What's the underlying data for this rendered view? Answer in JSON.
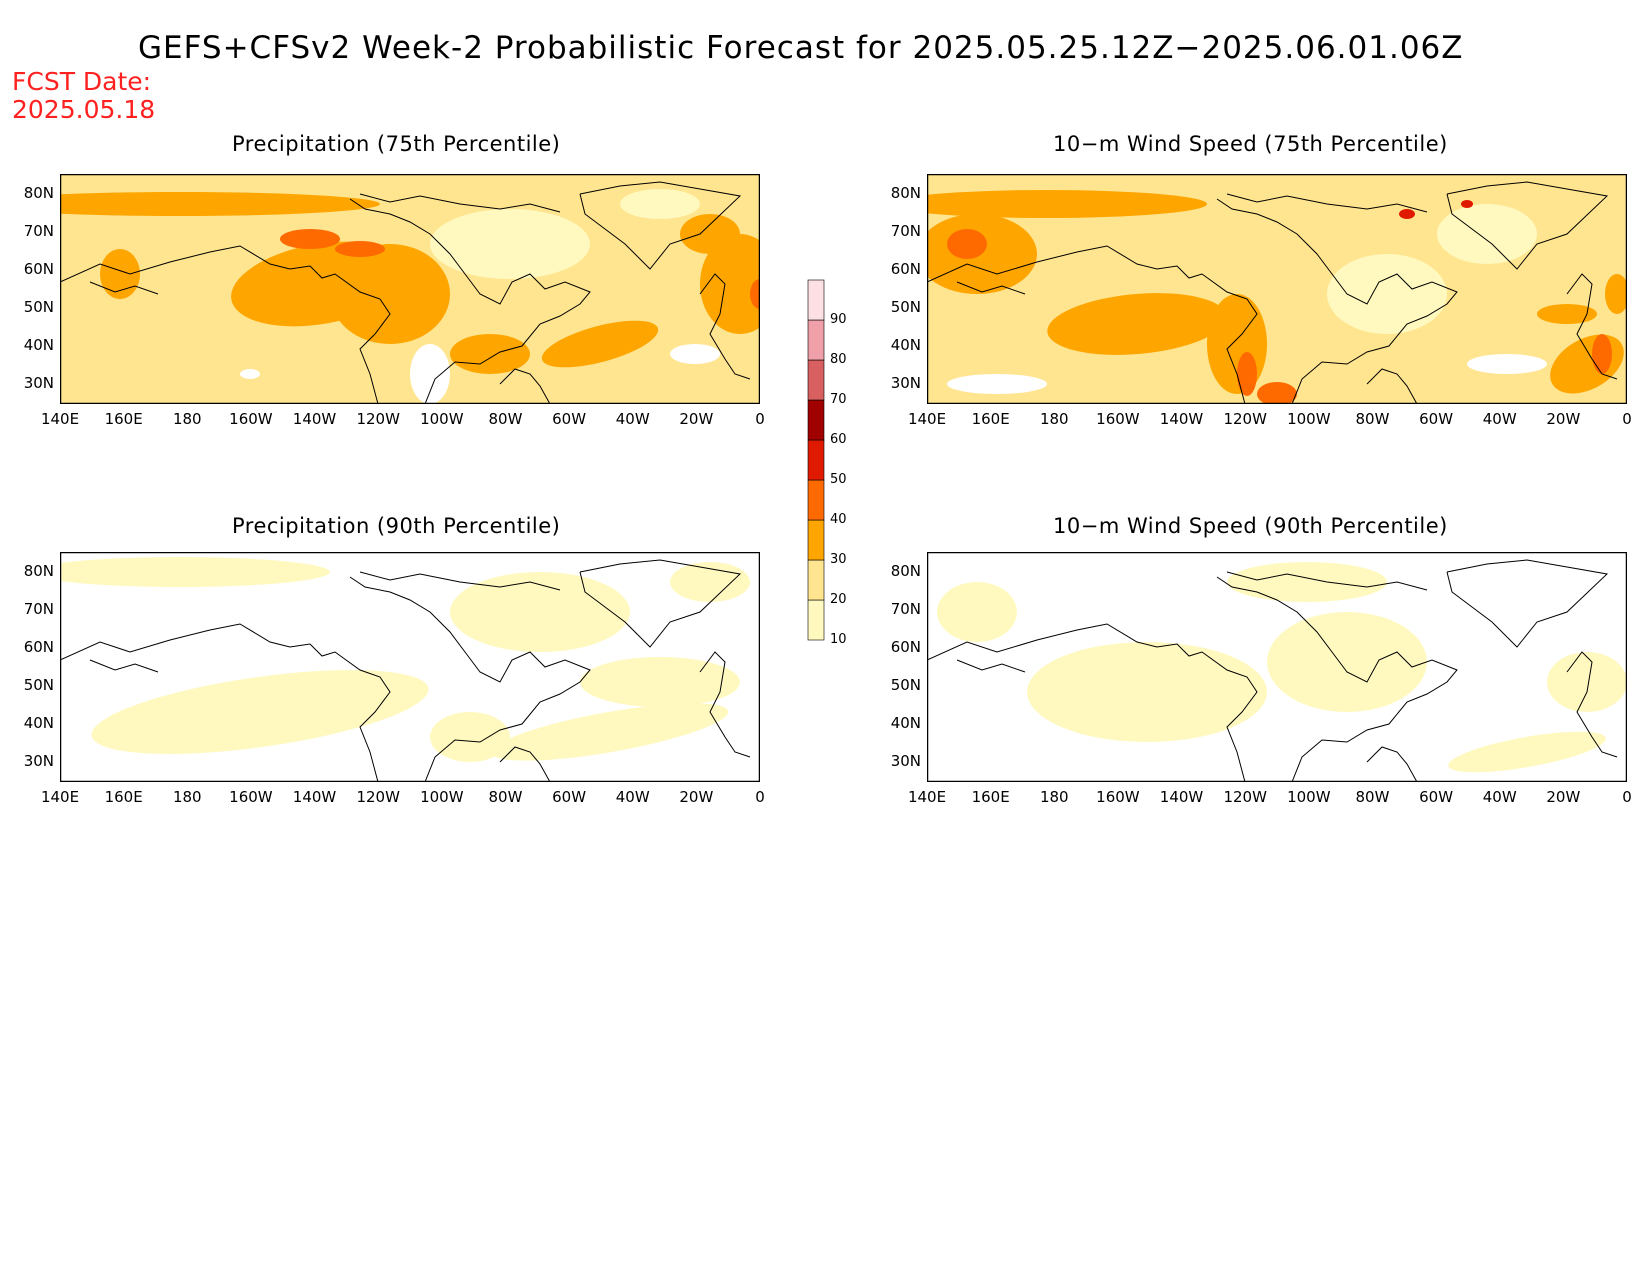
{
  "title": "GEFS+CFSv2 Week-2 Probabilistic Forecast for 2025.05.25.12Z−2025.06.01.06Z",
  "forecast_date": {
    "label": "FCST Date:",
    "value": "2025.05.18"
  },
  "axes": {
    "lat_labels": [
      "80N",
      "70N",
      "60N",
      "50N",
      "40N",
      "30N"
    ],
    "lon_labels": [
      "140E",
      "160E",
      "180",
      "160W",
      "140W",
      "120W",
      "100W",
      "80W",
      "60W",
      "40W",
      "20W",
      "0"
    ]
  },
  "panels": [
    {
      "id": "precip-75",
      "title": "Precipitation (75th Percentile)",
      "intensity": "high"
    },
    {
      "id": "wind-75",
      "title": "10−m Wind Speed (75th Percentile)",
      "intensity": "high"
    },
    {
      "id": "precip-90",
      "title": "Precipitation (90th Percentile)",
      "intensity": "low"
    },
    {
      "id": "wind-90",
      "title": "10−m Wind Speed (90th Percentile)",
      "intensity": "low"
    }
  ],
  "colorbar": {
    "levels": [
      "10",
      "20",
      "30",
      "40",
      "50",
      "60",
      "70",
      "80",
      "90"
    ],
    "colors": [
      "#fff9c0",
      "#ffe58f",
      "#ffa500",
      "#ff6a00",
      "#e01a00",
      "#a00000",
      "#d86060",
      "#f0a0a8",
      "#fde0e4"
    ]
  }
}
